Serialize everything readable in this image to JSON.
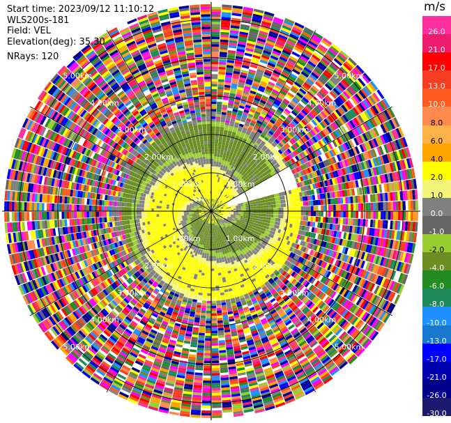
{
  "info": {
    "start_time": "Start time: 2023/09/12 11:10:12",
    "instrument": "WLS200s-181",
    "field": "Field: VEL",
    "elevation": "Elevation(deg): 35.30",
    "nrays": "NRays: 120"
  },
  "colorbar": {
    "unit": "m/s",
    "levels": [
      "26.0",
      "21.0",
      "17.0",
      "13.0",
      "10.0",
      "8.0",
      "6.0",
      "4.0",
      "2.0",
      "1.0",
      "0.0",
      "-1.0",
      "-2.0",
      "-4.0",
      "-6.0",
      "-8.0",
      "-10.0",
      "-13.0",
      "-17.0",
      "-21.0",
      "-26.0",
      "-30.0"
    ],
    "colors": [
      "#ff2f9e",
      "#ee1c6c",
      "#ff0000",
      "#f53d22",
      "#ff5a1e",
      "#ff8a50",
      "#ffb14a",
      "#ffa500",
      "#ffff00",
      "#f5f57a",
      "#808080",
      "#656565",
      "#9acd32",
      "#6b8e23",
      "#228b22",
      "#1e8a5a",
      "#1e90ff",
      "#1878d0",
      "#0000ff",
      "#0000b0",
      "#00008b",
      "#1a1a6e"
    ]
  },
  "chart_data": {
    "type": "ppi",
    "field": "VEL",
    "units": "m/s",
    "nrays": 120,
    "elevation_deg": 35.3,
    "ring_labels": [
      "1.00km",
      "2.00km",
      "3.00km",
      "4.00km",
      "5.00km"
    ],
    "range_rings_km": [
      1,
      2,
      3,
      4,
      5
    ],
    "max_range_km": 5.45,
    "spoke_angles_deg": [
      0,
      30,
      60,
      90,
      120,
      150,
      180,
      210,
      240,
      270,
      300,
      330
    ],
    "pattern": {
      "coherent_max_km": 2.3,
      "noise_min_km": 2.55,
      "inner_disc_km": 0.3,
      "scan_gaps_deg": [
        [
          60,
          75
        ]
      ]
    }
  }
}
